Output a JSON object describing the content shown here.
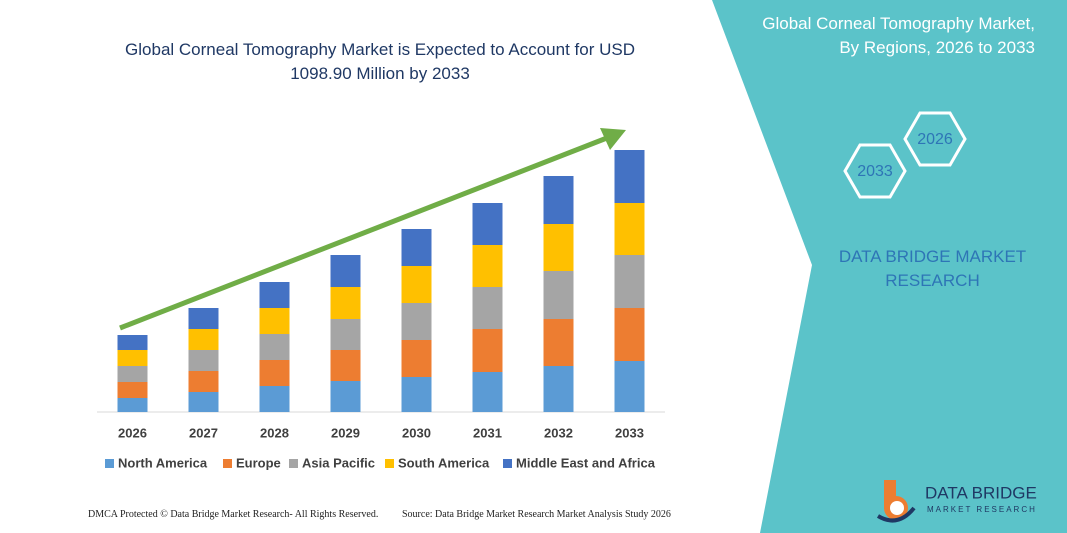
{
  "chart_data": {
    "type": "stacked_bar",
    "title": "Global Corneal Tomography Market is Expected to Account for USD 1098.90 Million by 2033",
    "categories": [
      "2026",
      "2027",
      "2028",
      "2029",
      "2030",
      "2031",
      "2032",
      "2033"
    ],
    "series": [
      {
        "name": "North America",
        "color": "#5b9bd5",
        "values": [
          14,
          20,
          26,
          31,
          35,
          40,
          46,
          51
        ]
      },
      {
        "name": "Europe",
        "color": "#ed7d31",
        "values": [
          16,
          21,
          26,
          31,
          37,
          43,
          47,
          53
        ]
      },
      {
        "name": "Asia Pacific",
        "color": "#a5a5a5",
        "values": [
          16,
          21,
          26,
          31,
          37,
          42,
          48,
          53
        ]
      },
      {
        "name": "South America",
        "color": "#ffc000",
        "values": [
          16,
          21,
          26,
          32,
          37,
          42,
          47,
          52
        ]
      },
      {
        "name": "Middle East and Africa",
        "color": "#4472c4",
        "values": [
          15,
          21,
          26,
          32,
          37,
          42,
          48,
          53
        ]
      }
    ],
    "ylim": [
      0,
      280
    ],
    "legend": "bottom"
  },
  "side_panel": {
    "title": "Global Corneal Tomography Market, By Regions, 2026 to 2033",
    "hexagons": [
      "2026",
      "2033"
    ],
    "company": "DATA BRIDGE MARKET RESEARCH"
  },
  "logo": {
    "name": "DATA BRIDGE",
    "tagline": "MARKET RESEARCH"
  },
  "footer": {
    "left": "DMCA Protected © Data Bridge Market Research- All Rights Reserved.",
    "right": "Source: Data Bridge Market Research Market Analysis Study 2026"
  }
}
